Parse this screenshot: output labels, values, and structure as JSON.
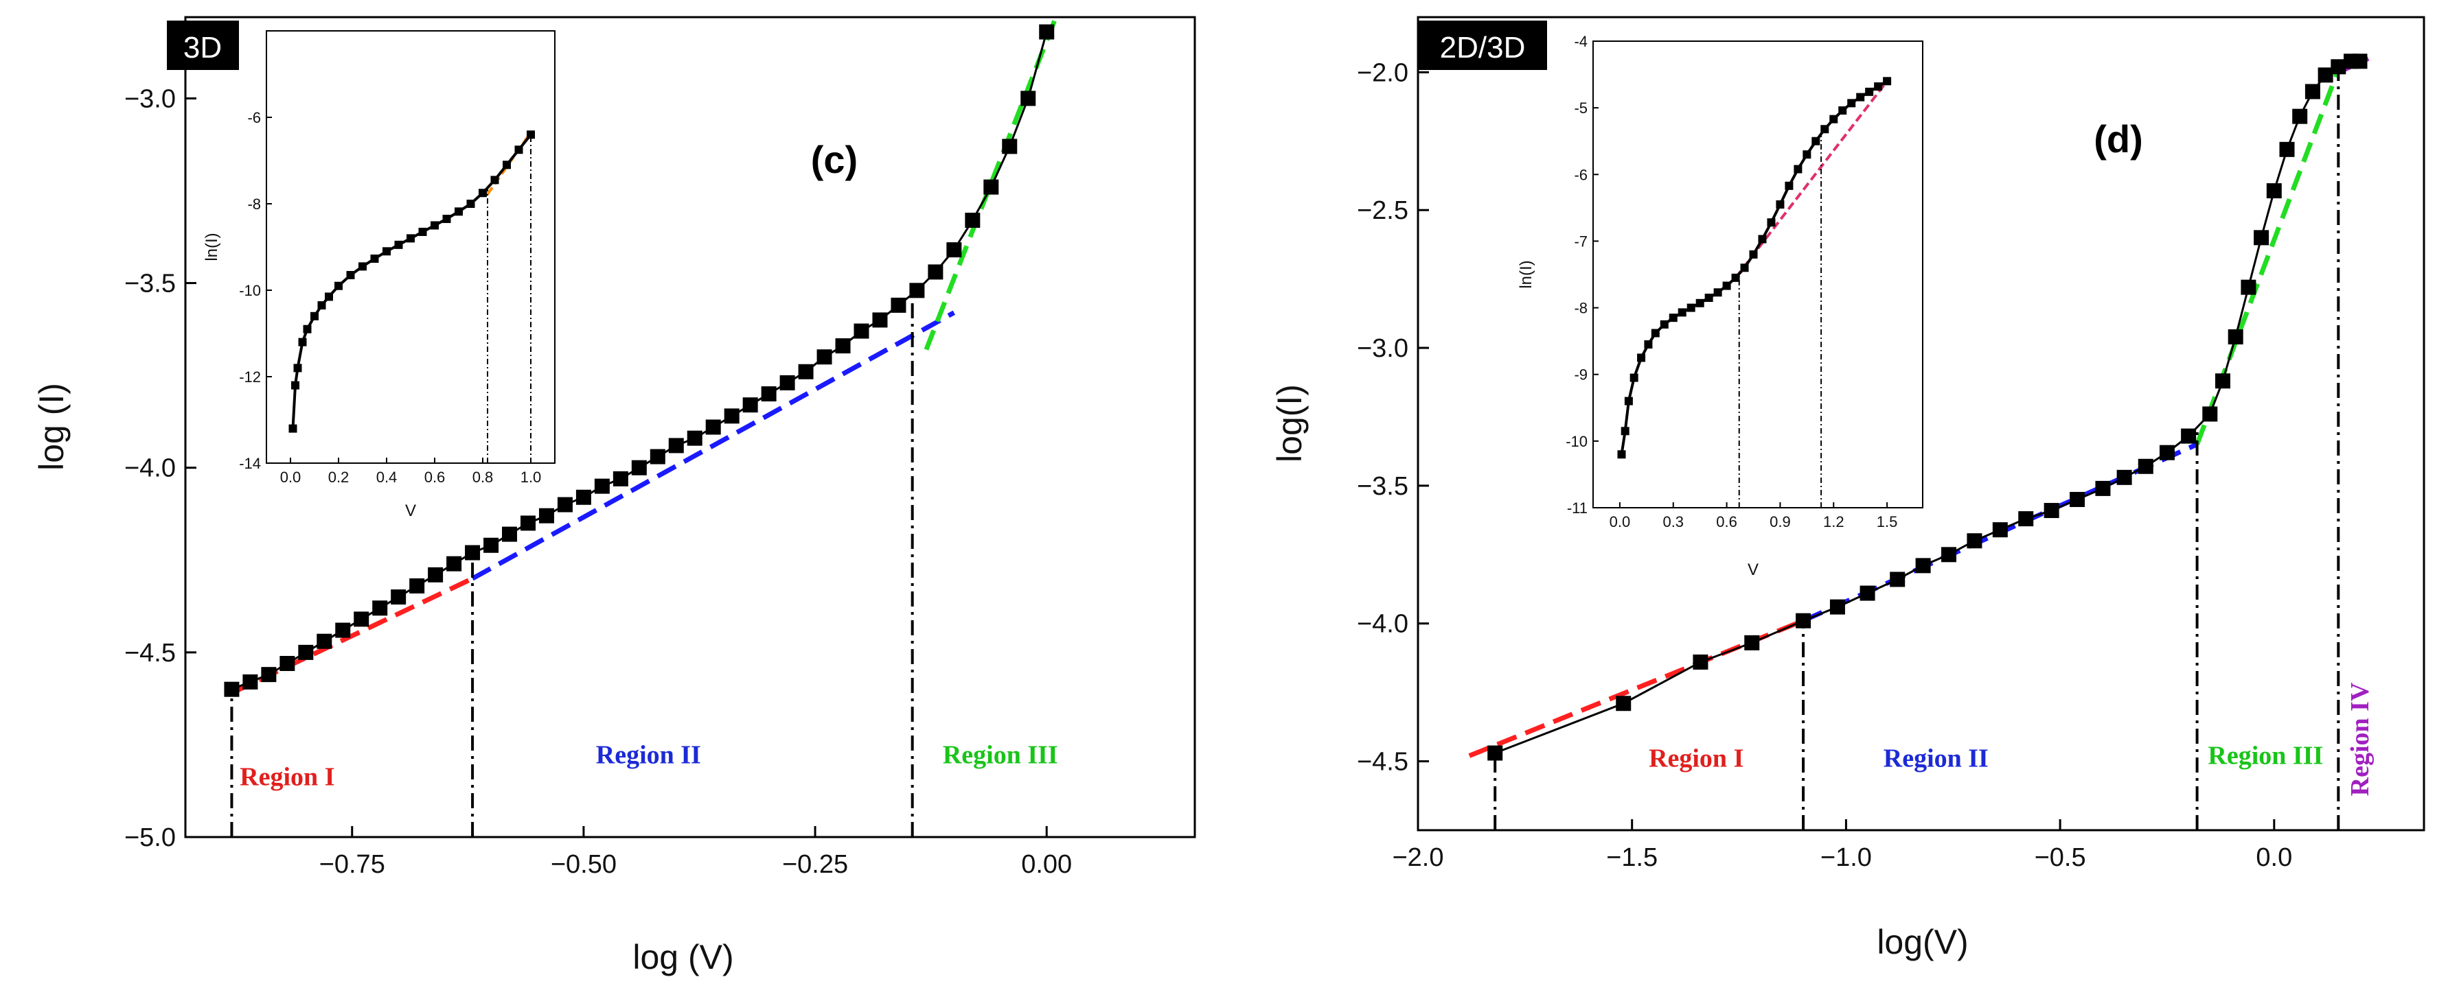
{
  "chart_data": [
    {
      "type": "scatter",
      "panel_id": "c",
      "badge": "3D",
      "panel_label": "(c)",
      "xlabel": "log (V)",
      "ylabel": "log (I)",
      "xlim": [
        -0.93,
        0.16
      ],
      "ylim": [
        -5.0,
        -2.78
      ],
      "xticks": [
        -0.75,
        -0.5,
        -0.25,
        0.0
      ],
      "xtick_labels": [
        "−0.75",
        "−0.50",
        "−0.25",
        "0.00"
      ],
      "yticks": [
        -5.0,
        -4.5,
        -4.0,
        -3.5,
        -3.0
      ],
      "ytick_labels": [
        "−5.0",
        "−4.5",
        "−4.0",
        "−3.5",
        "−3.0"
      ],
      "series": [
        {
          "name": "measured",
          "marker": "square",
          "color": "#000000",
          "x": [
            -0.88,
            -0.86,
            -0.84,
            -0.82,
            -0.8,
            -0.78,
            -0.76,
            -0.74,
            -0.72,
            -0.7,
            -0.68,
            -0.66,
            -0.64,
            -0.62,
            -0.6,
            -0.58,
            -0.56,
            -0.54,
            -0.52,
            -0.5,
            -0.48,
            -0.46,
            -0.44,
            -0.42,
            -0.4,
            -0.38,
            -0.36,
            -0.34,
            -0.32,
            -0.3,
            -0.28,
            -0.26,
            -0.24,
            -0.22,
            -0.2,
            -0.18,
            -0.16,
            -0.14,
            -0.12,
            -0.1,
            -0.08,
            -0.06,
            -0.04,
            -0.02,
            0.0
          ],
          "y": [
            -4.6,
            -4.58,
            -4.56,
            -4.53,
            -4.5,
            -4.47,
            -4.44,
            -4.41,
            -4.38,
            -4.35,
            -4.32,
            -4.29,
            -4.26,
            -4.23,
            -4.21,
            -4.18,
            -4.15,
            -4.13,
            -4.1,
            -4.08,
            -4.05,
            -4.03,
            -4.0,
            -3.97,
            -3.94,
            -3.92,
            -3.89,
            -3.86,
            -3.83,
            -3.8,
            -3.77,
            -3.74,
            -3.7,
            -3.67,
            -3.63,
            -3.6,
            -3.56,
            -3.52,
            -3.47,
            -3.41,
            -3.33,
            -3.24,
            -3.13,
            -3.0,
            -2.82
          ]
        }
      ],
      "fits": [
        {
          "region": "Region I",
          "color": "#ff2020",
          "x": [
            -0.88,
            -0.62
          ],
          "y": [
            -4.61,
            -4.3
          ]
        },
        {
          "region": "Region II",
          "color": "#1a1aff",
          "x": [
            -0.62,
            -0.1
          ],
          "y": [
            -4.3,
            -3.58
          ]
        },
        {
          "region": "Region III",
          "color": "#22dd22",
          "x": [
            -0.13,
            0.01
          ],
          "y": [
            -3.68,
            -2.78
          ]
        }
      ],
      "dividers_x": [
        -0.88,
        -0.62,
        -0.145
      ],
      "regions": [
        {
          "label": "Region I",
          "color": "#e0201e",
          "x": -0.82,
          "y": -4.86
        },
        {
          "label": "Region II",
          "color": "#1c2ad6",
          "x": -0.43,
          "y": -4.8
        },
        {
          "label": "Region III",
          "color": "#19c419",
          "x": -0.05,
          "y": -4.8
        }
      ],
      "inset": {
        "xlabel": "V",
        "ylabel": "ln(I)",
        "xlim": [
          -0.1,
          1.1
        ],
        "ylim": [
          -14,
          -4
        ],
        "xticks": [
          0.0,
          0.2,
          0.4,
          0.6,
          0.8,
          1.0
        ],
        "xtick_labels": [
          "0.0",
          "0.2",
          "0.4",
          "0.6",
          "0.8",
          "1.0"
        ],
        "yticks": [
          -14,
          -12,
          -10,
          -8,
          -6
        ],
        "ytick_labels": [
          "-14",
          "-12",
          "-10",
          "-8",
          "-6"
        ],
        "x": [
          0.01,
          0.02,
          0.03,
          0.05,
          0.07,
          0.1,
          0.13,
          0.16,
          0.2,
          0.25,
          0.3,
          0.35,
          0.4,
          0.45,
          0.5,
          0.55,
          0.6,
          0.65,
          0.7,
          0.75,
          0.8,
          0.85,
          0.9,
          0.95,
          1.0
        ],
        "y": [
          -13.2,
          -12.2,
          -11.8,
          -11.2,
          -10.9,
          -10.6,
          -10.35,
          -10.15,
          -9.9,
          -9.65,
          -9.45,
          -9.27,
          -9.1,
          -8.95,
          -8.8,
          -8.65,
          -8.5,
          -8.35,
          -8.18,
          -8.0,
          -7.75,
          -7.45,
          -7.1,
          -6.75,
          -6.4
        ],
        "fit": {
          "color": "#ff8c00",
          "x": [
            0.82,
            1.0
          ],
          "y": [
            -7.78,
            -6.35
          ]
        },
        "dividers_x": [
          0.82,
          1.0
        ]
      }
    },
    {
      "type": "scatter",
      "panel_id": "d",
      "badge": "2D/3D",
      "panel_label": "(d)",
      "xlabel": "log(V)",
      "ylabel": "log(I)",
      "xlim": [
        -2.0,
        0.35
      ],
      "ylim": [
        -4.75,
        -1.8
      ],
      "xticks": [
        -2.0,
        -1.5,
        -1.0,
        -0.5,
        0.0
      ],
      "xtick_labels": [
        "−2.0",
        "−1.5",
        "−1.0",
        "−0.5",
        "0.0"
      ],
      "yticks": [
        -4.5,
        -4.0,
        -3.5,
        -3.0,
        -2.5,
        -2.0
      ],
      "ytick_labels": [
        "−4.5",
        "−4.0",
        "−3.5",
        "−3.0",
        "−2.5",
        "−2.0"
      ],
      "series": [
        {
          "name": "measured",
          "marker": "square",
          "color": "#000000",
          "x": [
            -1.82,
            -1.52,
            -1.34,
            -1.22,
            -1.1,
            -1.02,
            -0.95,
            -0.88,
            -0.82,
            -0.76,
            -0.7,
            -0.64,
            -0.58,
            -0.52,
            -0.46,
            -0.4,
            -0.35,
            -0.3,
            -0.25,
            -0.2,
            -0.15,
            -0.12,
            -0.09,
            -0.06,
            -0.03,
            0.0,
            0.03,
            0.06,
            0.09,
            0.12,
            0.15,
            0.18,
            0.2
          ],
          "y": [
            -4.47,
            -4.29,
            -4.14,
            -4.07,
            -3.99,
            -3.94,
            -3.89,
            -3.84,
            -3.79,
            -3.75,
            -3.7,
            -3.66,
            -3.62,
            -3.59,
            -3.55,
            -3.51,
            -3.47,
            -3.43,
            -3.38,
            -3.32,
            -3.24,
            -3.12,
            -2.96,
            -2.78,
            -2.6,
            -2.43,
            -2.28,
            -2.16,
            -2.07,
            -2.01,
            -1.98,
            -1.96,
            -1.96
          ]
        }
      ],
      "fits": [
        {
          "region": "Region I",
          "color": "#ff2020",
          "x": [
            -1.88,
            -1.1
          ],
          "y": [
            -4.48,
            -3.99
          ]
        },
        {
          "region": "Region II",
          "color": "#1a1aff",
          "x": [
            -1.1,
            -0.18
          ],
          "y": [
            -3.99,
            -3.35
          ]
        },
        {
          "region": "Region III",
          "color": "#22dd22",
          "x": [
            -0.18,
            0.15
          ],
          "y": [
            -3.35,
            -1.99
          ]
        },
        {
          "region": "Region IV",
          "color": "#a020c0",
          "x": [
            0.15,
            0.22
          ],
          "y": [
            -2.0,
            -1.95
          ]
        }
      ],
      "dividers_x": [
        -1.82,
        -1.1,
        -0.18,
        0.15
      ],
      "regions": [
        {
          "label": "Region I",
          "color": "#e0201e",
          "x": -1.35,
          "y": -4.52
        },
        {
          "label": "Region II",
          "color": "#1c2ad6",
          "x": -0.79,
          "y": -4.52
        },
        {
          "label": "Region III",
          "color": "#19c419",
          "x": -0.02,
          "y": -4.51
        },
        {
          "label": "Region IV",
          "color": "#a020c0",
          "x": 0.22,
          "y": -4.42
        }
      ],
      "inset": {
        "xlabel": "V",
        "ylabel": "ln(I)",
        "xlim": [
          -0.15,
          1.7
        ],
        "ylim": [
          -11,
          -4
        ],
        "xticks": [
          0.0,
          0.3,
          0.6,
          0.9,
          1.2,
          1.5
        ],
        "xtick_labels": [
          "0.0",
          "0.3",
          "0.6",
          "0.9",
          "1.2",
          "1.5"
        ],
        "yticks": [
          -11,
          -10,
          -9,
          -8,
          -7,
          -6,
          -5,
          -4
        ],
        "ytick_labels": [
          "-11",
          "-10",
          "-9",
          "-8",
          "-7",
          "-6",
          "-5",
          "-4"
        ],
        "x": [
          0.01,
          0.03,
          0.05,
          0.08,
          0.12,
          0.16,
          0.2,
          0.25,
          0.3,
          0.35,
          0.4,
          0.45,
          0.5,
          0.55,
          0.6,
          0.65,
          0.7,
          0.75,
          0.8,
          0.85,
          0.9,
          0.95,
          1.0,
          1.05,
          1.1,
          1.15,
          1.2,
          1.25,
          1.3,
          1.35,
          1.4,
          1.45,
          1.5
        ],
        "y": [
          -10.2,
          -9.85,
          -9.4,
          -9.05,
          -8.75,
          -8.55,
          -8.38,
          -8.25,
          -8.15,
          -8.07,
          -8.0,
          -7.93,
          -7.85,
          -7.77,
          -7.67,
          -7.55,
          -7.4,
          -7.2,
          -6.97,
          -6.72,
          -6.45,
          -6.17,
          -5.92,
          -5.7,
          -5.5,
          -5.32,
          -5.17,
          -5.04,
          -4.93,
          -4.84,
          -4.76,
          -4.68,
          -4.6
        ],
        "fit": {
          "color": "#e0306a",
          "x": [
            0.65,
            1.5
          ],
          "y": [
            -7.55,
            -4.6
          ]
        },
        "dividers_x": [
          0.67,
          1.13
        ]
      }
    }
  ]
}
